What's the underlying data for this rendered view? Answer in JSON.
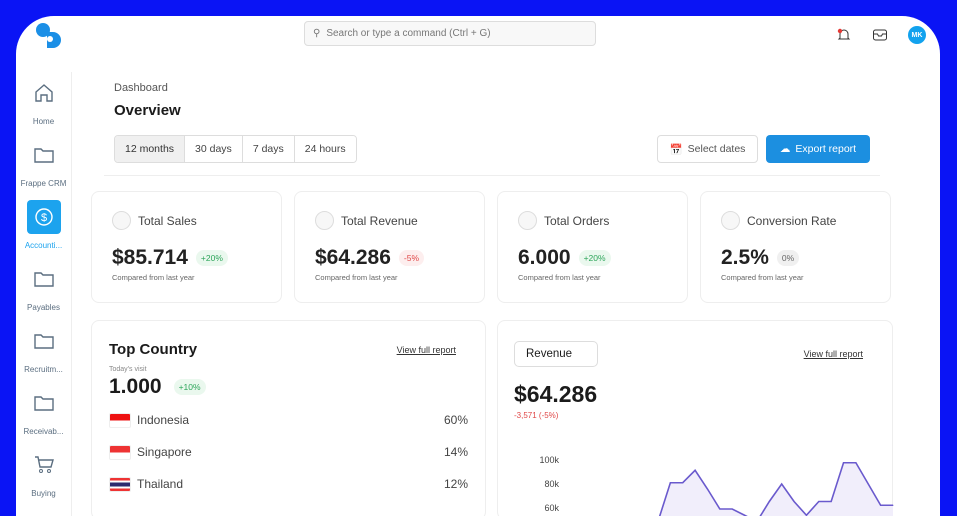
{
  "header": {
    "search_placeholder": "Search or type a command (Ctrl + G)",
    "avatar_initials": "MK",
    "notification_color": "#e53935"
  },
  "sidebar": {
    "items": [
      {
        "label": "Home",
        "icon": "home-icon"
      },
      {
        "label": "Frappe CRM",
        "icon": "folder-icon"
      },
      {
        "label": "Accounti...",
        "icon": "dollar-icon",
        "active": true
      },
      {
        "label": "Payables",
        "icon": "folder-icon"
      },
      {
        "label": "Recruitm...",
        "icon": "folder-icon"
      },
      {
        "label": "Receivab...",
        "icon": "folder-icon"
      },
      {
        "label": "Buying",
        "icon": "cart-icon"
      }
    ]
  },
  "page": {
    "breadcrumb": "Dashboard",
    "title": "Overview",
    "tabs": [
      "12 months",
      "30 days",
      "7 days",
      "24 hours"
    ],
    "selected_tab": "12 months",
    "select_dates": "Select dates",
    "export": "Export report"
  },
  "stats": [
    {
      "label": "Total Sales",
      "value": "$85.714",
      "change": "+20%",
      "trend": "up",
      "compare": "Compared from last year"
    },
    {
      "label": "Total Revenue",
      "value": "$64.286",
      "change": "-5%",
      "trend": "down",
      "compare": "Compared from last year"
    },
    {
      "label": "Total Orders",
      "value": "6.000",
      "change": "+20%",
      "trend": "up",
      "compare": "Compared from last year"
    },
    {
      "label": "Conversion Rate",
      "value": "2.5%",
      "change": "0%",
      "trend": "flat",
      "compare": "Compared from last year"
    }
  ],
  "top_country": {
    "title": "Top Country",
    "link": "View full report",
    "visits_label": "Today's visit",
    "visits": "1.000",
    "change": "+10%",
    "countries": [
      {
        "name": "Indonesia",
        "pct": "60%"
      },
      {
        "name": "Singapore",
        "pct": "14%"
      },
      {
        "name": "Thailand",
        "pct": "12%"
      }
    ]
  },
  "revenue": {
    "dropdown": "Revenue",
    "link": "View full report",
    "value": "$64.286",
    "change": "-3,571 (-5%)",
    "accent": "#6a5acd"
  },
  "chart_data": {
    "type": "area",
    "yticks": [
      "100k",
      "80k",
      "60k"
    ],
    "ylim": [
      40000,
      110000
    ],
    "values": [
      50000,
      81000,
      81000,
      91000,
      76000,
      60000,
      60000,
      55000,
      50000,
      66000,
      80000,
      66000,
      55000,
      66000,
      66000,
      97000,
      97000,
      80000,
      63000,
      63000
    ]
  }
}
